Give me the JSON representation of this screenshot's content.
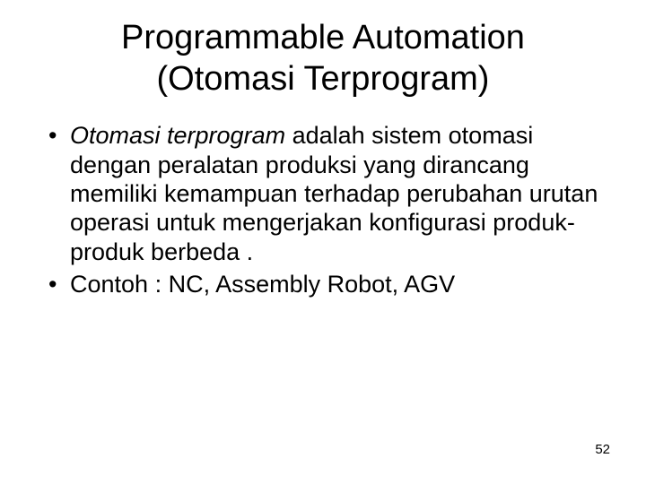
{
  "background_color": "#ffffff",
  "text_color": "#000000",
  "title": {
    "line1": "Programmable  Automation",
    "line2": "(Otomasi Terprogram)",
    "fontsize": 38,
    "font_family": "Arial",
    "font_weight": "normal",
    "align": "center"
  },
  "body": {
    "fontsize": 27,
    "line_height": 1.2,
    "bullet_char": "•",
    "items": [
      {
        "italic_prefix": "Otomasi terprogram",
        "rest": " adalah sistem otomasi dengan peralatan produksi yang dirancang memiliki kemampuan terhadap perubahan urutan operasi untuk mengerjakan konfigurasi produk-produk berbeda ."
      },
      {
        "text": "Contoh : NC, Assembly Robot, AGV"
      }
    ]
  },
  "page_number": {
    "value": "52",
    "fontsize": 15
  }
}
